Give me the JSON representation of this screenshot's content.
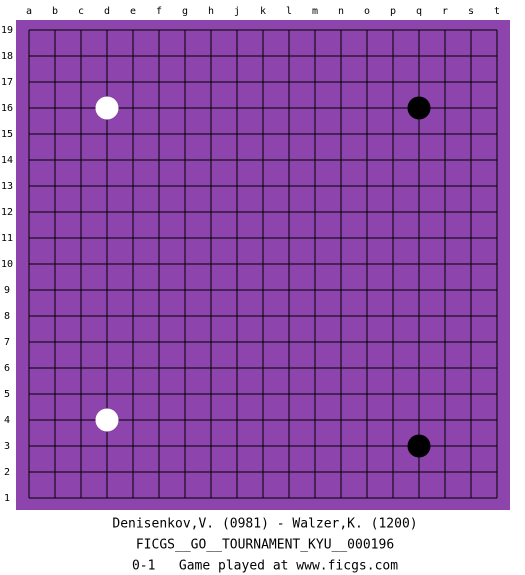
{
  "board": {
    "columns": [
      "a",
      "b",
      "c",
      "d",
      "e",
      "f",
      "g",
      "h",
      "j",
      "k",
      "l",
      "m",
      "n",
      "o",
      "p",
      "q",
      "r",
      "s",
      "t"
    ],
    "rows": [
      "19",
      "18",
      "17",
      "16",
      "15",
      "14",
      "13",
      "12",
      "11",
      "10",
      "9",
      "8",
      "7",
      "6",
      "5",
      "4",
      "3",
      "2",
      "1"
    ],
    "background": "#8e44ad",
    "stones": [
      {
        "col": "d",
        "row": "16",
        "color": "white"
      },
      {
        "col": "q",
        "row": "16",
        "color": "black"
      },
      {
        "col": "d",
        "row": "4",
        "color": "white"
      },
      {
        "col": "q",
        "row": "3",
        "color": "black"
      }
    ]
  },
  "footer": {
    "players": "Denisenkov,V. (0981) - Walzer,K. (1200)",
    "event": "FICGS__GO__TOURNAMENT_KYU__000196",
    "result": "0-1   Game played at www.ficgs.com"
  }
}
